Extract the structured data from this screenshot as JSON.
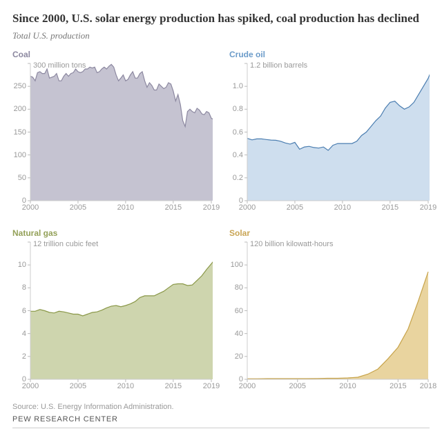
{
  "title": "Since 2000, U.S. solar energy production has spiked, coal production has declined",
  "subtitle": "Total U.S. production",
  "source": "Source: U.S. Energy Information Administration.",
  "footer": "PEW RESEARCH CENTER",
  "layout": {
    "grid_cols": 2,
    "grid_rows": 2,
    "panel_inner_left": 26,
    "axis_color": "#cccccc",
    "grid_color": "#e6e6e6",
    "tick_color": "#bbbbbb",
    "background_color": "#ffffff"
  },
  "panels": [
    {
      "id": "coal",
      "title": "Coal",
      "title_color": "#8c88a0",
      "unit": "300 million tons",
      "fill_color": "#b2afc1",
      "fill_opacity": 0.75,
      "line_color": "#8c88a0",
      "line_width": 1.2,
      "xlim": [
        2000,
        2019
      ],
      "ylim": [
        0,
        300
      ],
      "yticks": [
        0,
        50,
        100,
        150,
        200,
        250,
        300
      ],
      "ytick_labels": [
        "0",
        "50",
        "100",
        "150",
        "200",
        "250",
        ""
      ],
      "xticks": [
        2000,
        2005,
        2010,
        2015,
        2019
      ],
      "xtick_labels": [
        "2000",
        "2005",
        "2010",
        "2015",
        "2019"
      ],
      "series": [
        {
          "x": 2000.0,
          "y": 272
        },
        {
          "x": 2000.25,
          "y": 270
        },
        {
          "x": 2000.5,
          "y": 262
        },
        {
          "x": 2000.75,
          "y": 280
        },
        {
          "x": 2001.0,
          "y": 282
        },
        {
          "x": 2001.25,
          "y": 278
        },
        {
          "x": 2001.5,
          "y": 278
        },
        {
          "x": 2001.75,
          "y": 288
        },
        {
          "x": 2002.0,
          "y": 268
        },
        {
          "x": 2002.25,
          "y": 270
        },
        {
          "x": 2002.5,
          "y": 272
        },
        {
          "x": 2002.75,
          "y": 278
        },
        {
          "x": 2003.0,
          "y": 262
        },
        {
          "x": 2003.25,
          "y": 262
        },
        {
          "x": 2003.5,
          "y": 272
        },
        {
          "x": 2003.75,
          "y": 278
        },
        {
          "x": 2004.0,
          "y": 272
        },
        {
          "x": 2004.25,
          "y": 278
        },
        {
          "x": 2004.5,
          "y": 280
        },
        {
          "x": 2004.75,
          "y": 288
        },
        {
          "x": 2005.0,
          "y": 282
        },
        {
          "x": 2005.25,
          "y": 280
        },
        {
          "x": 2005.5,
          "y": 282
        },
        {
          "x": 2005.75,
          "y": 288
        },
        {
          "x": 2006.0,
          "y": 288
        },
        {
          "x": 2006.25,
          "y": 292
        },
        {
          "x": 2006.5,
          "y": 290
        },
        {
          "x": 2006.75,
          "y": 292
        },
        {
          "x": 2007.0,
          "y": 280
        },
        {
          "x": 2007.25,
          "y": 282
        },
        {
          "x": 2007.5,
          "y": 288
        },
        {
          "x": 2007.75,
          "y": 292
        },
        {
          "x": 2008.0,
          "y": 288
        },
        {
          "x": 2008.25,
          "y": 294
        },
        {
          "x": 2008.5,
          "y": 298
        },
        {
          "x": 2008.75,
          "y": 292
        },
        {
          "x": 2009.0,
          "y": 275
        },
        {
          "x": 2009.25,
          "y": 262
        },
        {
          "x": 2009.5,
          "y": 268
        },
        {
          "x": 2009.75,
          "y": 275
        },
        {
          "x": 2010.0,
          "y": 262
        },
        {
          "x": 2010.25,
          "y": 265
        },
        {
          "x": 2010.5,
          "y": 275
        },
        {
          "x": 2010.75,
          "y": 282
        },
        {
          "x": 2011.0,
          "y": 268
        },
        {
          "x": 2011.25,
          "y": 268
        },
        {
          "x": 2011.5,
          "y": 278
        },
        {
          "x": 2011.75,
          "y": 282
        },
        {
          "x": 2012.0,
          "y": 262
        },
        {
          "x": 2012.25,
          "y": 248
        },
        {
          "x": 2012.5,
          "y": 258
        },
        {
          "x": 2012.75,
          "y": 252
        },
        {
          "x": 2013.0,
          "y": 242
        },
        {
          "x": 2013.25,
          "y": 242
        },
        {
          "x": 2013.5,
          "y": 255
        },
        {
          "x": 2013.75,
          "y": 250
        },
        {
          "x": 2014.0,
          "y": 245
        },
        {
          "x": 2014.25,
          "y": 248
        },
        {
          "x": 2014.5,
          "y": 258
        },
        {
          "x": 2014.75,
          "y": 255
        },
        {
          "x": 2015.0,
          "y": 240
        },
        {
          "x": 2015.25,
          "y": 218
        },
        {
          "x": 2015.5,
          "y": 232
        },
        {
          "x": 2015.75,
          "y": 210
        },
        {
          "x": 2016.0,
          "y": 175
        },
        {
          "x": 2016.25,
          "y": 162
        },
        {
          "x": 2016.5,
          "y": 195
        },
        {
          "x": 2016.75,
          "y": 200
        },
        {
          "x": 2017.0,
          "y": 195
        },
        {
          "x": 2017.25,
          "y": 192
        },
        {
          "x": 2017.5,
          "y": 202
        },
        {
          "x": 2017.75,
          "y": 198
        },
        {
          "x": 2018.0,
          "y": 190
        },
        {
          "x": 2018.25,
          "y": 188
        },
        {
          "x": 2018.5,
          "y": 195
        },
        {
          "x": 2018.75,
          "y": 192
        },
        {
          "x": 2019.0,
          "y": 180
        },
        {
          "x": 2019.25,
          "y": 178
        }
      ]
    },
    {
      "id": "crude-oil",
      "title": "Crude oil",
      "title_color": "#6b9bc9",
      "unit": "1.2 billion barrels",
      "fill_color": "#c2d6ea",
      "fill_opacity": 0.8,
      "line_color": "#4a7db0",
      "line_width": 1.2,
      "xlim": [
        2000,
        2019
      ],
      "ylim": [
        0,
        1.2
      ],
      "yticks": [
        0,
        0.2,
        0.4,
        0.6,
        0.8,
        1.0,
        1.2
      ],
      "ytick_labels": [
        "0",
        "0.2",
        "0.4",
        "0.6",
        "0.8",
        "1.0",
        ""
      ],
      "xticks": [
        2000,
        2005,
        2010,
        2015,
        2019
      ],
      "xtick_labels": [
        "2000",
        "2005",
        "2010",
        "2015",
        "2019"
      ],
      "series": [
        {
          "x": 2000.0,
          "y": 0.545
        },
        {
          "x": 2000.5,
          "y": 0.532
        },
        {
          "x": 2001.0,
          "y": 0.54
        },
        {
          "x": 2001.5,
          "y": 0.54
        },
        {
          "x": 2002.0,
          "y": 0.535
        },
        {
          "x": 2002.5,
          "y": 0.53
        },
        {
          "x": 2003.0,
          "y": 0.528
        },
        {
          "x": 2003.5,
          "y": 0.52
        },
        {
          "x": 2004.0,
          "y": 0.505
        },
        {
          "x": 2004.5,
          "y": 0.495
        },
        {
          "x": 2005.0,
          "y": 0.51
        },
        {
          "x": 2005.5,
          "y": 0.45
        },
        {
          "x": 2006.0,
          "y": 0.47
        },
        {
          "x": 2006.5,
          "y": 0.475
        },
        {
          "x": 2007.0,
          "y": 0.465
        },
        {
          "x": 2007.5,
          "y": 0.46
        },
        {
          "x": 2008.0,
          "y": 0.47
        },
        {
          "x": 2008.5,
          "y": 0.44
        },
        {
          "x": 2009.0,
          "y": 0.485
        },
        {
          "x": 2009.5,
          "y": 0.5
        },
        {
          "x": 2010.0,
          "y": 0.5
        },
        {
          "x": 2010.5,
          "y": 0.5
        },
        {
          "x": 2011.0,
          "y": 0.5
        },
        {
          "x": 2011.5,
          "y": 0.52
        },
        {
          "x": 2012.0,
          "y": 0.57
        },
        {
          "x": 2012.5,
          "y": 0.6
        },
        {
          "x": 2013.0,
          "y": 0.65
        },
        {
          "x": 2013.5,
          "y": 0.7
        },
        {
          "x": 2014.0,
          "y": 0.74
        },
        {
          "x": 2014.5,
          "y": 0.81
        },
        {
          "x": 2015.0,
          "y": 0.86
        },
        {
          "x": 2015.5,
          "y": 0.87
        },
        {
          "x": 2016.0,
          "y": 0.83
        },
        {
          "x": 2016.5,
          "y": 0.8
        },
        {
          "x": 2017.0,
          "y": 0.82
        },
        {
          "x": 2017.5,
          "y": 0.86
        },
        {
          "x": 2018.0,
          "y": 0.93
        },
        {
          "x": 2018.5,
          "y": 1.0
        },
        {
          "x": 2019.0,
          "y": 1.07
        },
        {
          "x": 2019.25,
          "y": 1.12
        }
      ]
    },
    {
      "id": "natural-gas",
      "title": "Natural gas",
      "title_color": "#94a159",
      "unit": "12 trillion cubic feet",
      "fill_color": "#c2cb9a",
      "fill_opacity": 0.8,
      "line_color": "#8a9848",
      "line_width": 1.2,
      "xlim": [
        2000,
        2019
      ],
      "ylim": [
        0,
        12
      ],
      "yticks": [
        0,
        2,
        4,
        6,
        8,
        10,
        12
      ],
      "ytick_labels": [
        "0",
        "2",
        "4",
        "6",
        "8",
        "10",
        ""
      ],
      "xticks": [
        2000,
        2005,
        2010,
        2015,
        2019
      ],
      "xtick_labels": [
        "2000",
        "2005",
        "2010",
        "2015",
        "2019"
      ],
      "series": [
        {
          "x": 2000.0,
          "y": 5.95
        },
        {
          "x": 2000.5,
          "y": 5.95
        },
        {
          "x": 2001.0,
          "y": 6.1
        },
        {
          "x": 2001.5,
          "y": 6.0
        },
        {
          "x": 2002.0,
          "y": 5.85
        },
        {
          "x": 2002.5,
          "y": 5.8
        },
        {
          "x": 2003.0,
          "y": 5.95
        },
        {
          "x": 2003.5,
          "y": 5.9
        },
        {
          "x": 2004.0,
          "y": 5.8
        },
        {
          "x": 2004.5,
          "y": 5.7
        },
        {
          "x": 2005.0,
          "y": 5.7
        },
        {
          "x": 2005.5,
          "y": 5.55
        },
        {
          "x": 2006.0,
          "y": 5.7
        },
        {
          "x": 2006.5,
          "y": 5.85
        },
        {
          "x": 2007.0,
          "y": 5.9
        },
        {
          "x": 2007.5,
          "y": 6.05
        },
        {
          "x": 2008.0,
          "y": 6.25
        },
        {
          "x": 2008.5,
          "y": 6.4
        },
        {
          "x": 2009.0,
          "y": 6.45
        },
        {
          "x": 2009.5,
          "y": 6.35
        },
        {
          "x": 2010.0,
          "y": 6.45
        },
        {
          "x": 2010.5,
          "y": 6.6
        },
        {
          "x": 2011.0,
          "y": 6.8
        },
        {
          "x": 2011.5,
          "y": 7.15
        },
        {
          "x": 2012.0,
          "y": 7.3
        },
        {
          "x": 2012.5,
          "y": 7.3
        },
        {
          "x": 2013.0,
          "y": 7.3
        },
        {
          "x": 2013.5,
          "y": 7.5
        },
        {
          "x": 2014.0,
          "y": 7.7
        },
        {
          "x": 2014.5,
          "y": 8.0
        },
        {
          "x": 2015.0,
          "y": 8.3
        },
        {
          "x": 2015.5,
          "y": 8.35
        },
        {
          "x": 2016.0,
          "y": 8.35
        },
        {
          "x": 2016.5,
          "y": 8.2
        },
        {
          "x": 2017.0,
          "y": 8.25
        },
        {
          "x": 2017.5,
          "y": 8.65
        },
        {
          "x": 2018.0,
          "y": 9.05
        },
        {
          "x": 2018.5,
          "y": 9.6
        },
        {
          "x": 2019.0,
          "y": 10.1
        },
        {
          "x": 2019.25,
          "y": 10.35
        }
      ]
    },
    {
      "id": "solar",
      "title": "Solar",
      "title_color": "#c9a554",
      "unit": "120 billion kilowatt-hours",
      "fill_color": "#e3c987",
      "fill_opacity": 0.8,
      "line_color": "#c7a34a",
      "line_width": 1.2,
      "xlim": [
        2000,
        2018
      ],
      "ylim": [
        0,
        120
      ],
      "yticks": [
        0,
        20,
        40,
        60,
        80,
        100,
        120
      ],
      "ytick_labels": [
        "0",
        "20",
        "40",
        "60",
        "80",
        "100",
        ""
      ],
      "xticks": [
        2000,
        2005,
        2010,
        2015,
        2018
      ],
      "xtick_labels": [
        "2000",
        "2005",
        "2010",
        "2015",
        "2018"
      ],
      "series": [
        {
          "x": 2000,
          "y": 0.5
        },
        {
          "x": 2001,
          "y": 0.5
        },
        {
          "x": 2002,
          "y": 0.6
        },
        {
          "x": 2003,
          "y": 0.6
        },
        {
          "x": 2004,
          "y": 0.6
        },
        {
          "x": 2005,
          "y": 0.6
        },
        {
          "x": 2006,
          "y": 0.6
        },
        {
          "x": 2007,
          "y": 0.7
        },
        {
          "x": 2008,
          "y": 0.9
        },
        {
          "x": 2009,
          "y": 0.9
        },
        {
          "x": 2010,
          "y": 1.2
        },
        {
          "x": 2011,
          "y": 1.8
        },
        {
          "x": 2012,
          "y": 4.5
        },
        {
          "x": 2013,
          "y": 9
        },
        {
          "x": 2014,
          "y": 18
        },
        {
          "x": 2015,
          "y": 28
        },
        {
          "x": 2016,
          "y": 44
        },
        {
          "x": 2017,
          "y": 68
        },
        {
          "x": 2018,
          "y": 94
        }
      ]
    }
  ]
}
